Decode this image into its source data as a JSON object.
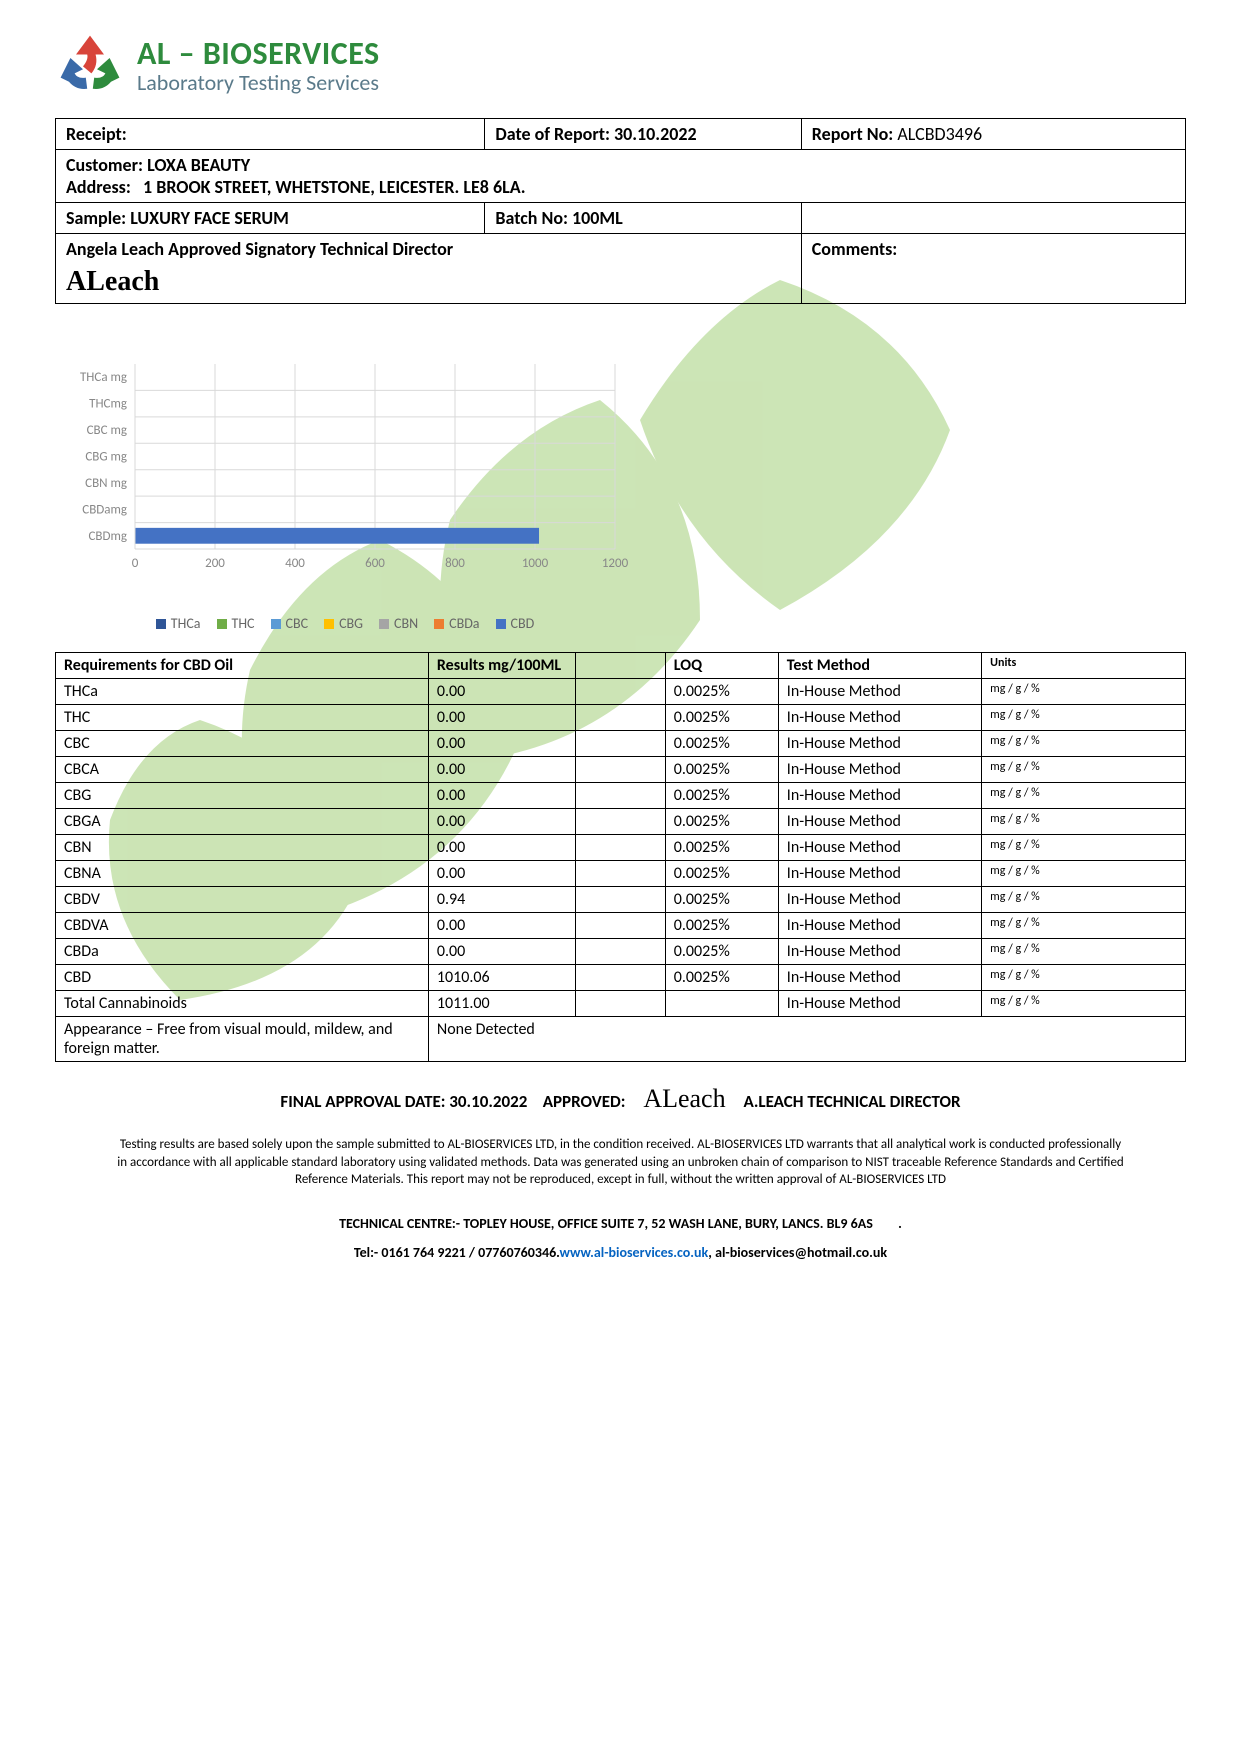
{
  "company": {
    "name": "AL – BIOSERVICES",
    "tagline": "Laboratory Testing Services",
    "name_color": "#2e8b3d",
    "tagline_color": "#5a7a8a"
  },
  "header": {
    "receipt_label": "Receipt:",
    "date_label": "Date of Report: 30.10.2022",
    "report_no_label": "Report No:",
    "report_no": "ALCBD3496",
    "customer_label": "Customer:",
    "customer": "LOXA BEAUTY",
    "address_label": "Address:",
    "address": "1 BROOK STREET, WHETSTONE, LEICESTER. LE8 6LA.",
    "sample_label": "Sample:",
    "sample": "LUXURY FACE SERUM",
    "batch_label": "Batch No:",
    "batch": "100ML",
    "signatory": "Angela Leach Approved Signatory Technical Director",
    "signature_text": "ALeach",
    "comments_label": "Comments:"
  },
  "chart": {
    "type": "bar-horizontal",
    "categories": [
      "CBDmg",
      "CBDamg",
      "CBN mg",
      "CBG mg",
      "CBC mg",
      "THCmg",
      "THCa mg"
    ],
    "values": [
      1010.06,
      0,
      0,
      0,
      0,
      0,
      0
    ],
    "xlim": [
      0,
      1200
    ],
    "xticks": [
      0,
      200,
      400,
      600,
      800,
      1000,
      1200
    ],
    "grid_color": "#d9d9d9",
    "axis_label_color": "#888888",
    "label_fontsize": 13,
    "bar_height": 0.6,
    "legend": [
      {
        "label": "THCa",
        "color": "#2f5597"
      },
      {
        "label": "THC",
        "color": "#70ad47"
      },
      {
        "label": "CBC",
        "color": "#5b9bd5"
      },
      {
        "label": "CBG",
        "color": "#ffc000"
      },
      {
        "label": "CBN",
        "color": "#a5a5a5"
      },
      {
        "label": "CBDa",
        "color": "#ed7d31"
      },
      {
        "label": "CBD",
        "color": "#4472c4"
      }
    ],
    "cbd_bar_color": "#4472c4"
  },
  "results": {
    "col_headers": {
      "req": "Requirements for CBD Oil",
      "results": "Results mg/100ML",
      "loq": "LOQ",
      "method": "Test Method",
      "units": "Units"
    },
    "rows": [
      {
        "name": "THCa",
        "result": "0.00",
        "loq": "0.0025%",
        "method": "In-House Method",
        "units": "mg / g / %"
      },
      {
        "name": "THC",
        "result": "0.00",
        "loq": "0.0025%",
        "method": "In-House Method",
        "units": "mg / g / %"
      },
      {
        "name": "CBC",
        "result": "0.00",
        "loq": "0.0025%",
        "method": "In-House Method",
        "units": "mg / g / %"
      },
      {
        "name": "CBCA",
        "result": "0.00",
        "loq": "0.0025%",
        "method": "In-House Method",
        "units": "mg / g / %"
      },
      {
        "name": "CBG",
        "result": "0.00",
        "loq": "0.0025%",
        "method": "In-House Method",
        "units": "mg / g / %"
      },
      {
        "name": "CBGA",
        "result": "0.00",
        "loq": "0.0025%",
        "method": "In-House Method",
        "units": "mg / g / %"
      },
      {
        "name": "CBN",
        "result": "0.00",
        "loq": "0.0025%",
        "method": "In-House Method",
        "units": "mg / g / %"
      },
      {
        "name": "CBNA",
        "result": "0.00",
        "loq": "0.0025%",
        "method": "In-House Method",
        "units": "mg / g / %"
      },
      {
        "name": "CBDV",
        "result": "0.94",
        "loq": "0.0025%",
        "method": "In-House Method",
        "units": "mg / g / %"
      },
      {
        "name": "CBDVA",
        "result": "0.00",
        "loq": "0.0025%",
        "method": "In-House Method",
        "units": "mg / g / %"
      },
      {
        "name": "CBDa",
        "result": "0.00",
        "loq": "0.0025%",
        "method": "In-House Method",
        "units": "mg / g / %"
      },
      {
        "name": "CBD",
        "result": "1010.06",
        "loq": "0.0025%",
        "method": "In-House Method",
        "units": "mg / g / %"
      },
      {
        "name": "Total Cannabinoids",
        "result": "1011.00",
        "loq": "",
        "method": "In-House Method",
        "units": "mg / g / %"
      }
    ],
    "appearance_label": "Appearance – Free from visual mould, mildew, and foreign matter.",
    "appearance_result": "None Detected"
  },
  "approval": {
    "date_text": "FINAL APPROVAL DATE: 30.10.2022",
    "approved_label": "APPROVED:",
    "signature": "ALeach",
    "director": "A.LEACH TECHNICAL DIRECTOR"
  },
  "disclaimer": "Testing results are based solely upon the sample submitted to AL-BIOSERVICES LTD, in the condition received. AL-BIOSERVICES LTD warrants that all analytical work is conducted professionally in accordance with all applicable standard laboratory using validated methods. Data was generated using an unbroken chain of comparison to NIST traceable Reference Standards and Certified Reference Materials. This report may not be reproduced, except in full, without the written approval of AL-BIOSERVICES LTD",
  "centre": "TECHNICAL CENTRE:- TOPLEY HOUSE, OFFICE SUITE 7, 52 WASH LANE, BURY, LANCS. BL9 6AS",
  "contact": {
    "tel": "Tel:- 0161 764 9221 / 07760760346.",
    "web": "www.al-bioservices.co.uk",
    "sep": ",  ",
    "email": "al-bioservices@hotmail.co.uk"
  },
  "watermark_color": "#a3cf7a"
}
